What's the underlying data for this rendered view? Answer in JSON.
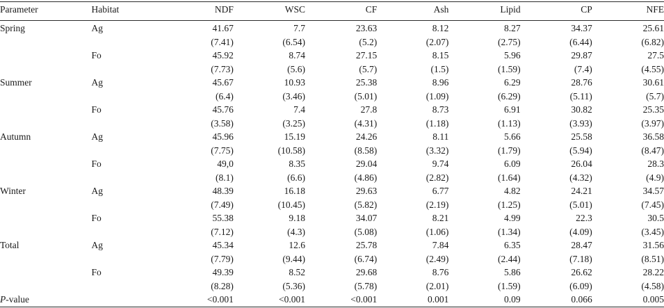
{
  "table": {
    "headers": [
      "Parameter",
      "Habitat",
      "NDF",
      "WSC",
      "CF",
      "Ash",
      "Lipid",
      "CP",
      "NFE"
    ],
    "rows": [
      {
        "parameter": "Spring",
        "habitat": "Ag",
        "values": [
          "41.67",
          "7.7",
          "23.63",
          "8.12",
          "8.27",
          "34.37",
          "25.61"
        ]
      },
      {
        "parameter": "",
        "habitat": "",
        "values": [
          "(7.41)",
          "(6.54)",
          "(5.2)",
          "(2.07)",
          "(2.75)",
          "(6.44)",
          "(6.82)"
        ]
      },
      {
        "parameter": "",
        "habitat": "Fo",
        "values": [
          "45.92",
          "8.74",
          "27.15",
          "8.15",
          "5.96",
          "29.87",
          "27.5"
        ]
      },
      {
        "parameter": "",
        "habitat": "",
        "values": [
          "(7.73)",
          "(5.6)",
          "(5.7)",
          "(1.5)",
          "(1.59)",
          "(7.4)",
          "(4.55)"
        ]
      },
      {
        "parameter": "Summer",
        "habitat": "Ag",
        "values": [
          "45.67",
          "10.93",
          "25.38",
          "8.96",
          "6.29",
          "28.76",
          "30.61"
        ]
      },
      {
        "parameter": "",
        "habitat": "",
        "values": [
          "(6.4)",
          "(3.46)",
          "(5.01)",
          "(1.09)",
          "(6.29)",
          "(5.11)",
          "(5.7)"
        ]
      },
      {
        "parameter": "",
        "habitat": "Fo",
        "values": [
          "45.76",
          "7.4",
          "27.8",
          "8.73",
          "6.91",
          "30.82",
          "25.35"
        ]
      },
      {
        "parameter": "",
        "habitat": "",
        "values": [
          "(3.58)",
          "(3.25)",
          "(4.31)",
          "(1.18)",
          "(1.13)",
          "(3.93)",
          "(3.97)"
        ]
      },
      {
        "parameter": "Autumn",
        "habitat": "Ag",
        "values": [
          "45.96",
          "15.19",
          "24.26",
          "8.11",
          "5.66",
          "25.58",
          "36.58"
        ]
      },
      {
        "parameter": "",
        "habitat": "",
        "values": [
          "(7.75)",
          "(10.58)",
          "(8.58)",
          "(3.32)",
          "(1.79)",
          "(5.94)",
          "(8.47)"
        ]
      },
      {
        "parameter": "",
        "habitat": "Fo",
        "values": [
          "49,0",
          "8.35",
          "29.04",
          "9.74",
          "6.09",
          "26.04",
          "28.3"
        ]
      },
      {
        "parameter": "",
        "habitat": "",
        "values": [
          "(8.1)",
          "(6.6)",
          "(4.86)",
          "(2.82)",
          "(1.64)",
          "(4.32)",
          "(4.9)"
        ]
      },
      {
        "parameter": "Winter",
        "habitat": "Ag",
        "values": [
          "48.39",
          "16.18",
          "29.63",
          "6.77",
          "4.82",
          "24.21",
          "34.57"
        ]
      },
      {
        "parameter": "",
        "habitat": "",
        "values": [
          "(7.49)",
          "(10.45)",
          "(5.82)",
          "(2.19)",
          "(1.25)",
          "(5.01)",
          "(7.45)"
        ]
      },
      {
        "parameter": "",
        "habitat": "Fo",
        "values": [
          "55.38",
          "9.18",
          "34.07",
          "8.21",
          "4.99",
          "22.3",
          "30.5"
        ]
      },
      {
        "parameter": "",
        "habitat": "",
        "values": [
          "(7.12)",
          "(4.3)",
          "(5.08)",
          "(1.06)",
          "(1.34)",
          "(4.09)",
          "(3.45)"
        ]
      },
      {
        "parameter": "Total",
        "habitat": "Ag",
        "values": [
          "45.34",
          "12.6",
          "25.78",
          "7.84",
          "6.35",
          "28.47",
          "31.56"
        ]
      },
      {
        "parameter": "",
        "habitat": "",
        "values": [
          "(7.79)",
          "(9.44)",
          "(6.74)",
          "(2.49)",
          "(2.44)",
          "(7.18)",
          "(8.51)"
        ]
      },
      {
        "parameter": "",
        "habitat": "Fo",
        "values": [
          "49.39",
          "8.52",
          "29.68",
          "8.76",
          "5.86",
          "26.62",
          "28.22"
        ]
      },
      {
        "parameter": "",
        "habitat": "",
        "values": [
          "(8.28)",
          "(5.36)",
          "(5.78)",
          "(2.01)",
          "(1.59)",
          "(6.09)",
          "(4.58)"
        ]
      }
    ],
    "pvalue_row": {
      "label_italic": "P",
      "label_rest": "-value",
      "values": [
        "<0.001",
        "<0.001",
        "<0.001",
        "0.001",
        "0.09",
        "0.066",
        "0.005"
      ]
    }
  }
}
